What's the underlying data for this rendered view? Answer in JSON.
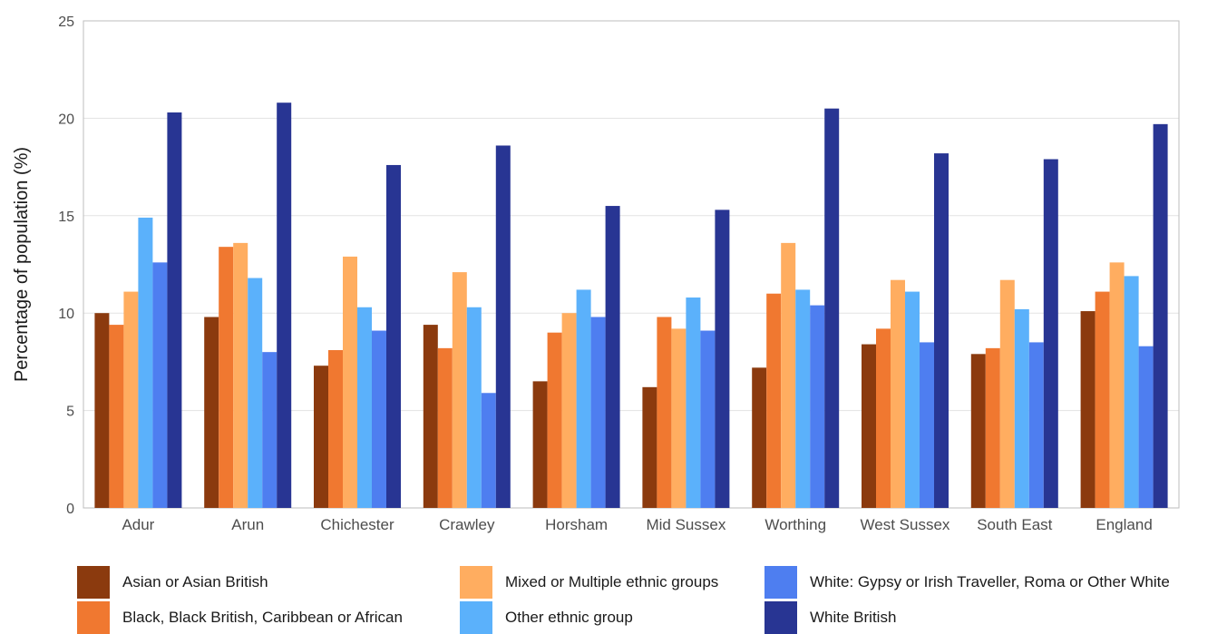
{
  "chart_data": {
    "type": "bar",
    "ylabel": "Percentage of population (%)",
    "xlabel": "",
    "ylim": [
      0,
      25
    ],
    "yticks": [
      0,
      5,
      10,
      15,
      20,
      25
    ],
    "grid": true,
    "legend_position": "bottom",
    "categories": [
      "Adur",
      "Arun",
      "Chichester",
      "Crawley",
      "Horsham",
      "Mid Sussex",
      "Worthing",
      "West Sussex",
      "South East",
      "England"
    ],
    "series": [
      {
        "name": "Asian or Asian British",
        "color": "#8B3A0E",
        "values": [
          10.0,
          9.8,
          7.3,
          9.4,
          6.5,
          6.2,
          7.2,
          8.4,
          7.9,
          10.1
        ]
      },
      {
        "name": "Black, Black British, Caribbean or African",
        "color": "#F07830",
        "values": [
          9.4,
          13.4,
          8.1,
          8.2,
          9.0,
          9.8,
          11.0,
          9.2,
          8.2,
          11.1
        ]
      },
      {
        "name": "Mixed or Multiple ethnic groups",
        "color": "#FFAD60",
        "values": [
          11.1,
          13.6,
          12.9,
          12.1,
          10.0,
          9.2,
          13.6,
          11.7,
          11.7,
          12.6
        ]
      },
      {
        "name": "Other ethnic group",
        "color": "#5BB1FB",
        "values": [
          14.9,
          11.8,
          10.3,
          10.3,
          11.2,
          10.8,
          11.2,
          11.1,
          10.2,
          11.9
        ]
      },
      {
        "name": "White: Gypsy or Irish Traveller, Roma or Other White",
        "color": "#4E7EF0",
        "values": [
          12.6,
          8.0,
          9.1,
          5.9,
          9.8,
          9.1,
          10.4,
          8.5,
          8.5,
          8.3
        ]
      },
      {
        "name": "White British",
        "color": "#283593",
        "values": [
          20.3,
          20.8,
          17.6,
          18.6,
          15.5,
          15.3,
          20.5,
          18.2,
          17.9,
          19.7
        ]
      }
    ]
  }
}
